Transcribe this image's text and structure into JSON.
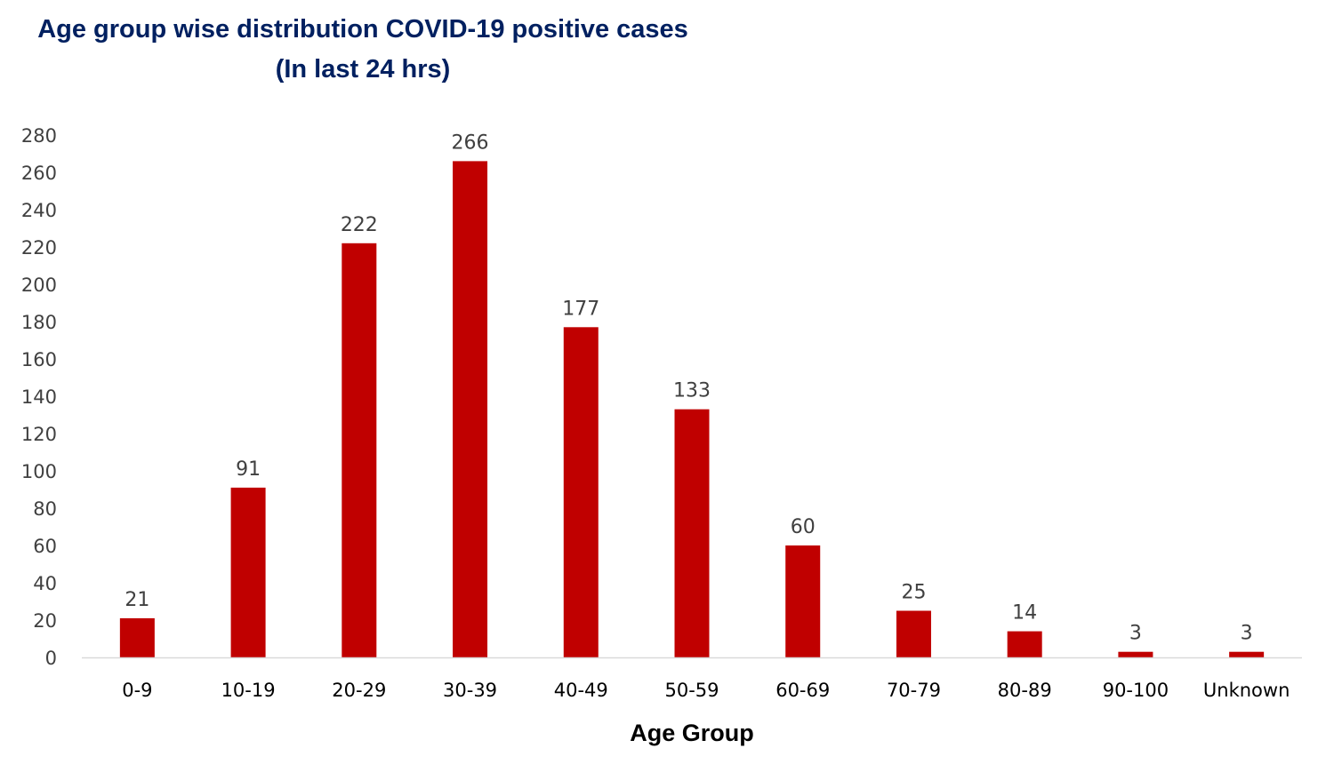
{
  "chart_data": {
    "type": "bar",
    "title": "Age group wise distribution COVID-19 positive cases",
    "subtitle": "(In last 24 hrs)",
    "xlabel": "Age Group",
    "ylabel": "",
    "categories": [
      "0-9",
      "10-19",
      "20-29",
      "30-39",
      "40-49",
      "50-59",
      "60-69",
      "70-79",
      "80-89",
      "90-100",
      "Unknown"
    ],
    "values": [
      21,
      91,
      222,
      266,
      177,
      133,
      60,
      25,
      14,
      3,
      3
    ],
    "ylim": [
      0,
      280
    ],
    "yticks": [
      "0",
      "20",
      "40",
      "60",
      "80",
      "100",
      "120",
      "140",
      "160",
      "180",
      "200",
      "220",
      "240",
      "260",
      "280"
    ],
    "grid": false,
    "legend": "none",
    "data_labels": true,
    "colors": {
      "bar": "#C00000",
      "title": "#002060",
      "axis_line": "#D9D9D9",
      "text": "#404040"
    }
  }
}
